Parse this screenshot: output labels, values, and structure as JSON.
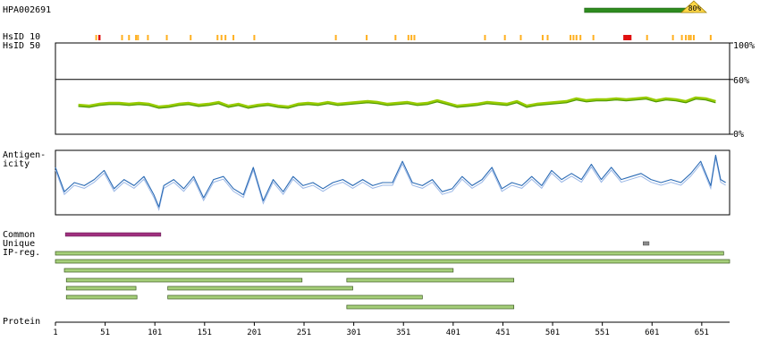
{
  "chart_data": {
    "type": "line",
    "antibody_id": "HPA002691",
    "antigen_region": {
      "start": 533,
      "end": 643,
      "identity_label": "80%"
    },
    "labels": {
      "hsid10": "HsID 10",
      "hsid50": "HsID 50",
      "antigenicity": "Antigen-\nicity",
      "common": "Common",
      "unique": "Unique",
      "ipreg": "IP-reg.",
      "protein": "Protein"
    },
    "percent_ticks": [
      "100%",
      "60%",
      "0%"
    ],
    "protein_length": 679,
    "x_ticks": [
      1,
      51,
      101,
      151,
      201,
      251,
      301,
      351,
      401,
      451,
      501,
      551,
      601,
      651
    ],
    "hsid10_orange": [
      42,
      68,
      75,
      82,
      84,
      94,
      113,
      137,
      164,
      168,
      172,
      180,
      201,
      283,
      314,
      343,
      356,
      359,
      362,
      433,
      453,
      469,
      491,
      496,
      519,
      522,
      525,
      529,
      542,
      596,
      622,
      631,
      635,
      638,
      640,
      643,
      660
    ],
    "hsid10_red": [
      45,
      573,
      575,
      577,
      579
    ],
    "identity_series": [
      {
        "name": "HsID 50",
        "color": "#99cc00",
        "x": [
          24,
          35,
          45,
          55,
          65,
          75,
          85,
          95,
          105,
          115,
          125,
          135,
          145,
          155,
          165,
          175,
          185,
          195,
          205,
          215,
          225,
          235,
          245,
          255,
          265,
          275,
          285,
          295,
          305,
          315,
          325,
          335,
          345,
          355,
          365,
          375,
          385,
          395,
          405,
          415,
          425,
          435,
          445,
          455,
          465,
          475,
          485,
          495,
          505,
          515,
          525,
          535,
          545,
          555,
          565,
          575,
          585,
          595,
          605,
          615,
          625,
          635,
          645,
          655,
          665
        ],
        "y": [
          32,
          31,
          33,
          34,
          34,
          33,
          34,
          33,
          30,
          31,
          33,
          34,
          32,
          33,
          35,
          31,
          33,
          30,
          32,
          33,
          31,
          30,
          33,
          34,
          33,
          35,
          33,
          34,
          35,
          36,
          35,
          33,
          34,
          35,
          33,
          34,
          37,
          34,
          31,
          32,
          33,
          35,
          34,
          33,
          36,
          31,
          33,
          34,
          35,
          36,
          39,
          37,
          38,
          38,
          39,
          38,
          39,
          40,
          37,
          39,
          38,
          36,
          40,
          39,
          36
        ]
      }
    ],
    "antigenicity_series": {
      "color": "#2b6bb5",
      "x": [
        1,
        10,
        20,
        30,
        40,
        50,
        60,
        70,
        80,
        90,
        100,
        105,
        110,
        120,
        130,
        140,
        150,
        160,
        170,
        180,
        190,
        200,
        210,
        220,
        230,
        240,
        250,
        260,
        270,
        280,
        290,
        300,
        310,
        320,
        330,
        340,
        350,
        360,
        370,
        380,
        390,
        400,
        410,
        420,
        430,
        440,
        450,
        460,
        470,
        480,
        490,
        500,
        510,
        520,
        530,
        540,
        550,
        560,
        570,
        580,
        590,
        600,
        610,
        620,
        630,
        640,
        650,
        660,
        665,
        670,
        675
      ],
      "y": [
        0.75,
        0.35,
        0.5,
        0.45,
        0.55,
        0.7,
        0.4,
        0.55,
        0.45,
        0.6,
        0.3,
        0.1,
        0.45,
        0.55,
        0.4,
        0.6,
        0.25,
        0.55,
        0.6,
        0.4,
        0.3,
        0.75,
        0.2,
        0.55,
        0.35,
        0.6,
        0.45,
        0.5,
        0.4,
        0.5,
        0.55,
        0.45,
        0.55,
        0.45,
        0.5,
        0.5,
        0.85,
        0.5,
        0.45,
        0.55,
        0.35,
        0.4,
        0.6,
        0.45,
        0.55,
        0.75,
        0.4,
        0.5,
        0.45,
        0.6,
        0.45,
        0.7,
        0.55,
        0.65,
        0.55,
        0.8,
        0.55,
        0.75,
        0.55,
        0.6,
        0.65,
        0.55,
        0.5,
        0.55,
        0.5,
        0.65,
        0.85,
        0.45,
        0.95,
        0.55,
        0.5
      ]
    },
    "common_bars": [
      {
        "start": 11,
        "end": 107,
        "color": "#a0307f"
      }
    ],
    "unique_bars": [
      {
        "start": 592,
        "end": 598,
        "color": "#8c8c8c"
      }
    ],
    "ipreg_bars": [
      {
        "start": 1,
        "end": 673
      },
      {
        "start": 1,
        "end": 679
      },
      {
        "start": 10,
        "end": 401
      },
      {
        "start": 12,
        "end": 249
      },
      {
        "start": 294,
        "end": 462
      },
      {
        "start": 12,
        "end": 82
      },
      {
        "start": 114,
        "end": 300
      },
      {
        "start": 12,
        "end": 83
      },
      {
        "start": 114,
        "end": 370
      },
      {
        "start": 294,
        "end": 462
      }
    ]
  }
}
